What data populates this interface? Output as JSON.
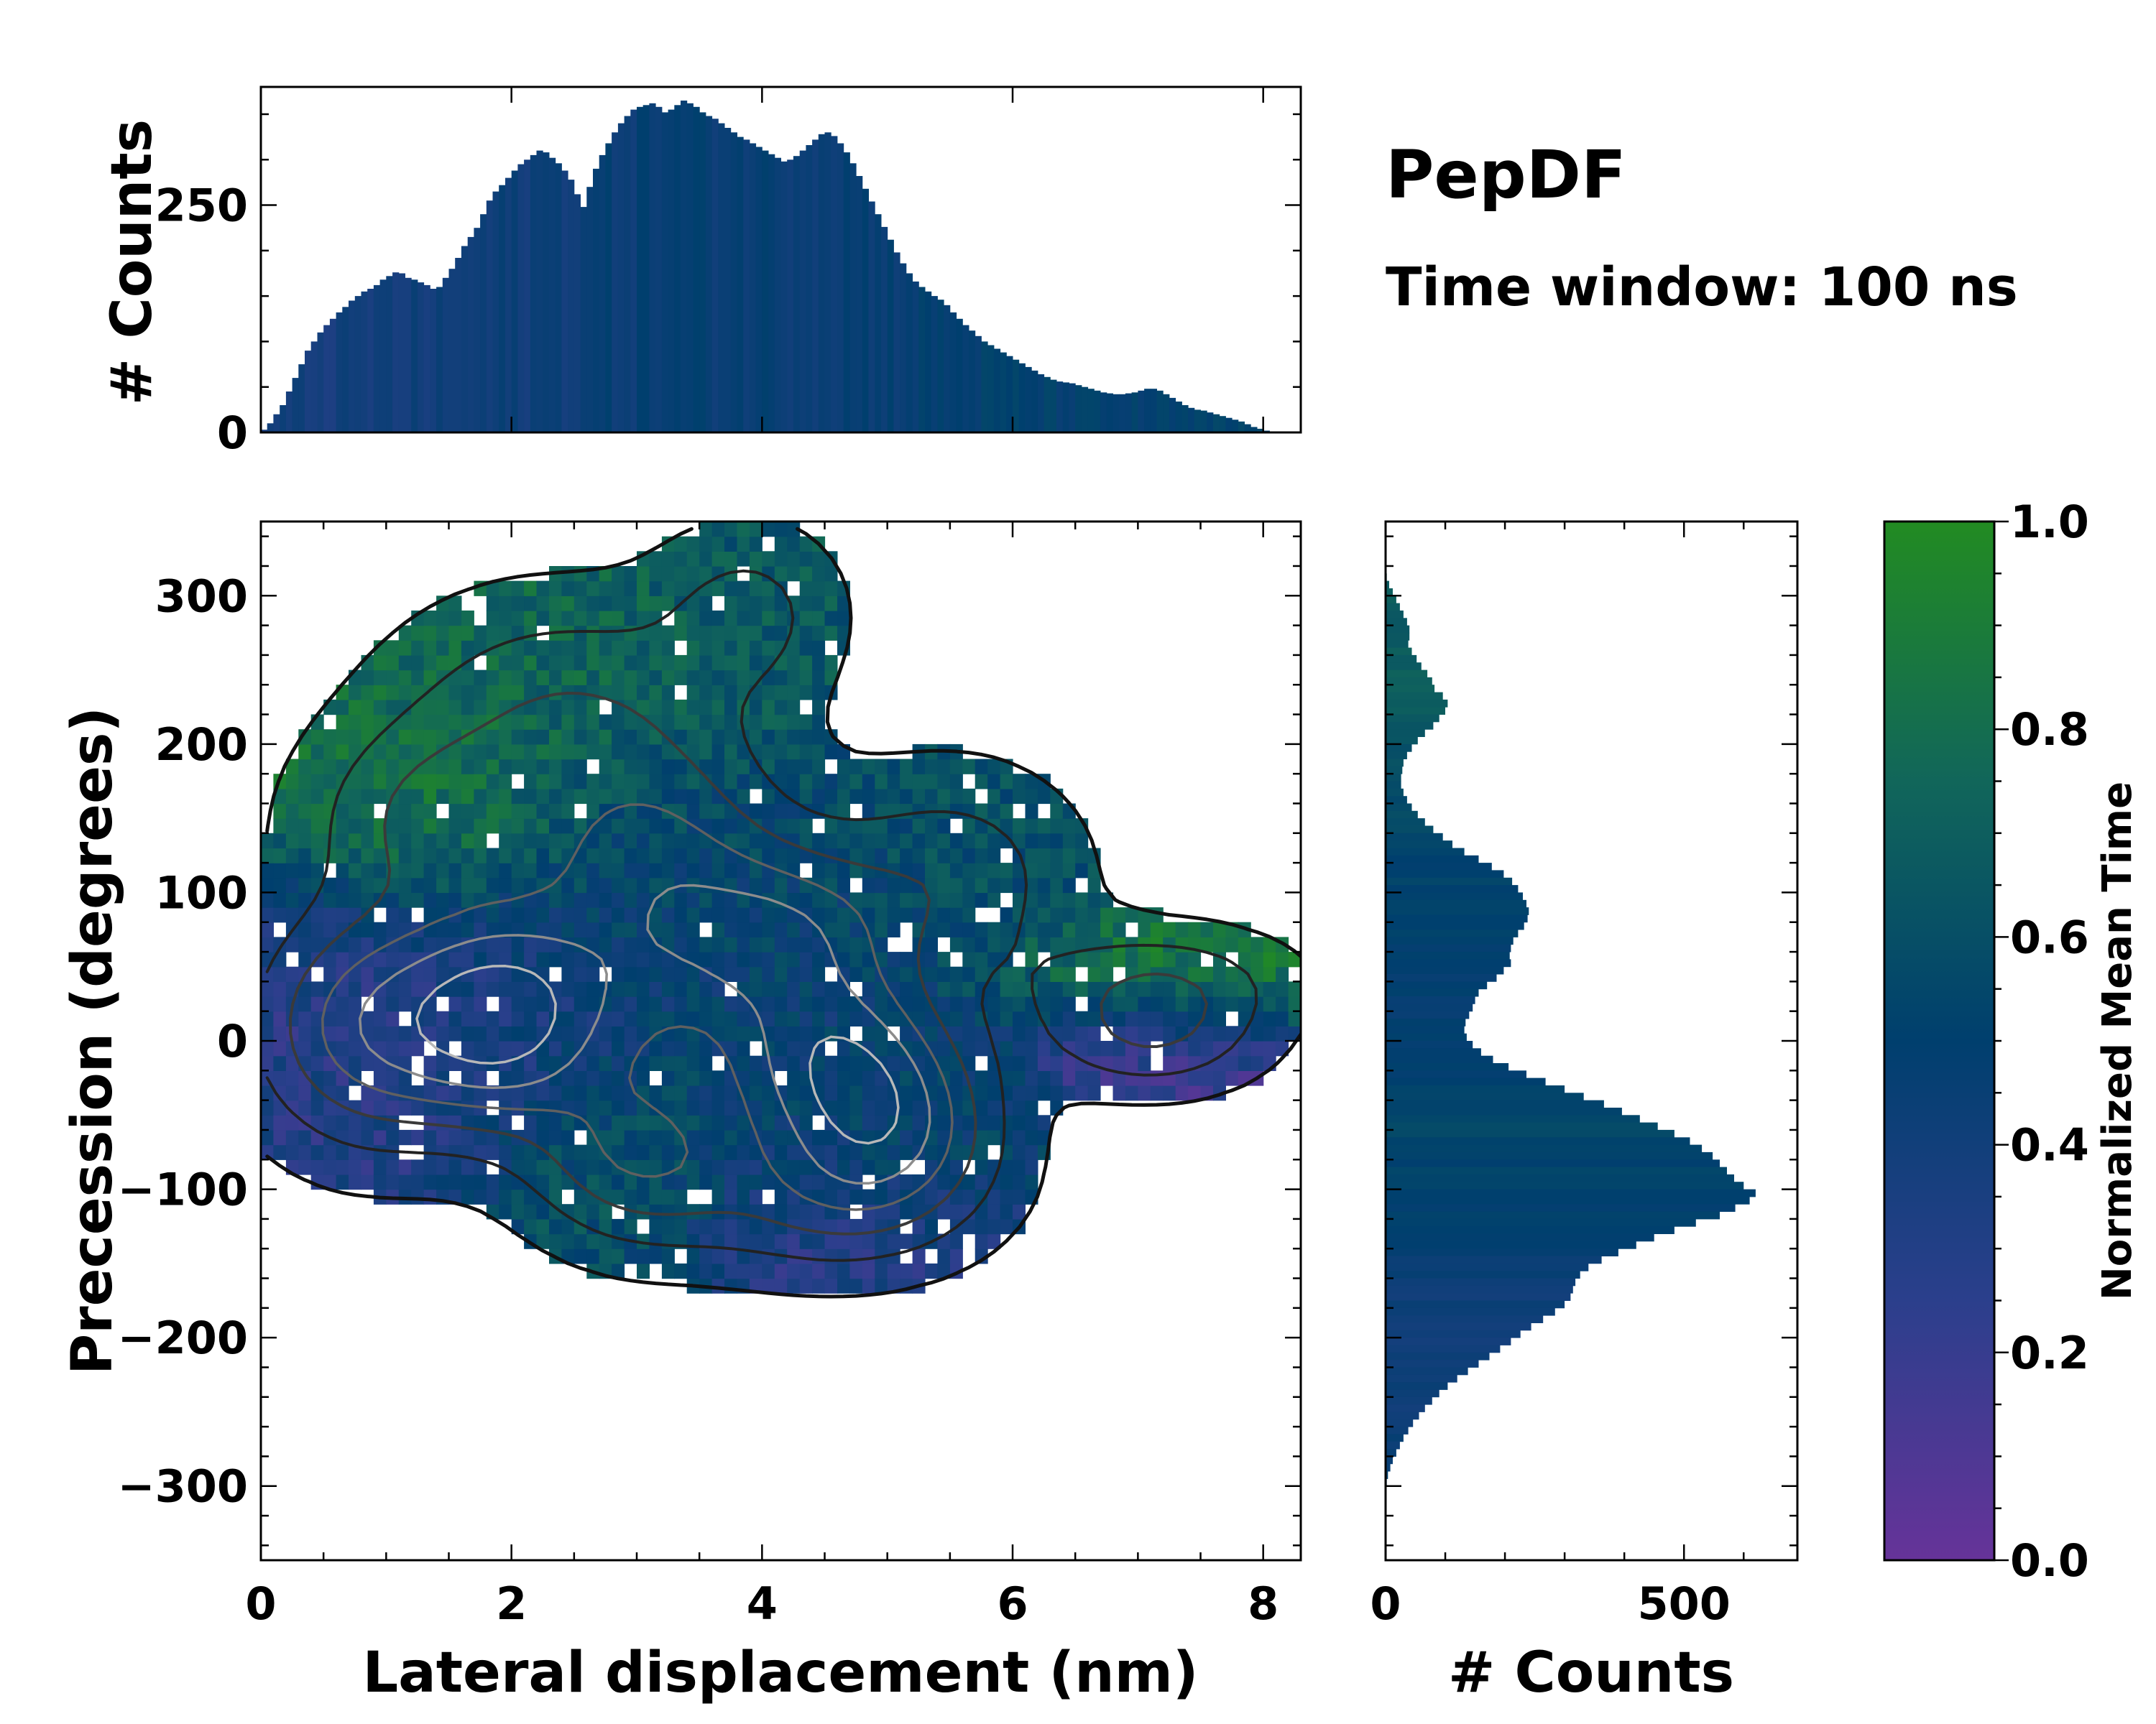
{
  "chart_data": {
    "type": "heatmap",
    "title": "PepDF",
    "subtitle": "Time window: 100 ns",
    "xlabel": "Lateral displacement (nm)",
    "ylabel": "Precession (degrees)",
    "xlim": [
      0,
      8.3
    ],
    "ylim": [
      -350,
      350
    ],
    "x_ticks": [
      0,
      2,
      4,
      6,
      8
    ],
    "y_ticks": [
      -300,
      -200,
      -100,
      0,
      100,
      200,
      300
    ],
    "colorbar": {
      "label": "Normalized Mean Time",
      "range": [
        0.0,
        1.0
      ],
      "ticks": [
        "0.0",
        "0.2",
        "0.4",
        "0.6",
        "0.8",
        "1.0"
      ],
      "colors": [
        "#663399",
        "#2b3f8c",
        "#003f6e",
        "#11665a",
        "#228b22"
      ]
    },
    "density_regions": [
      {
        "x": 0.9,
        "y": 10,
        "sx": 0.65,
        "sy": 55,
        "w": 1.0,
        "t": 0.3
      },
      {
        "x": 1.9,
        "y": 15,
        "sx": 0.5,
        "sy": 45,
        "w": 1.0,
        "t": 0.35
      },
      {
        "x": 3.2,
        "y": 130,
        "sx": 0.7,
        "sy": 55,
        "w": 0.7,
        "t": 0.55
      },
      {
        "x": 1.4,
        "y": 150,
        "sx": 0.7,
        "sy": 45,
        "w": 0.6,
        "t": 0.85
      },
      {
        "x": 2.4,
        "y": 230,
        "sx": 0.9,
        "sy": 50,
        "w": 0.5,
        "t": 0.75
      },
      {
        "x": 4.2,
        "y": 70,
        "sx": 0.6,
        "sy": 40,
        "w": 0.8,
        "t": 0.5
      },
      {
        "x": 4.6,
        "y": -10,
        "sx": 0.6,
        "sy": 40,
        "w": 1.0,
        "t": 0.45
      },
      {
        "x": 5.0,
        "y": -60,
        "sx": 0.6,
        "sy": 40,
        "w": 0.9,
        "t": 0.55
      },
      {
        "x": 3.0,
        "y": -80,
        "sx": 0.6,
        "sy": 40,
        "w": 0.7,
        "t": 0.65
      },
      {
        "x": 4.5,
        "y": -110,
        "sx": 0.8,
        "sy": 35,
        "w": 0.5,
        "t": 0.25
      },
      {
        "x": 3.9,
        "y": 290,
        "sx": 0.5,
        "sy": 40,
        "w": 0.4,
        "t": 0.65
      },
      {
        "x": 7.2,
        "y": 40,
        "sx": 0.7,
        "sy": 25,
        "w": 0.5,
        "t": 0.9
      },
      {
        "x": 7.1,
        "y": 0,
        "sx": 0.6,
        "sy": 25,
        "w": 0.5,
        "t": 0.15
      },
      {
        "x": 5.5,
        "y": 110,
        "sx": 0.7,
        "sy": 50,
        "w": 0.5,
        "t": 0.6
      },
      {
        "x": 2.8,
        "y": 30,
        "sx": 0.8,
        "sy": 60,
        "w": 0.7,
        "t": 0.45
      }
    ],
    "marginal_x": {
      "ylabel": "# Counts",
      "yticks": [
        0,
        250
      ],
      "ylim": [
        0,
        380
      ],
      "bin_start": 0.0,
      "bin_width": 0.05,
      "values": [
        3,
        10,
        20,
        30,
        45,
        60,
        75,
        90,
        100,
        110,
        118,
        125,
        132,
        138,
        145,
        150,
        155,
        158,
        162,
        168,
        172,
        176,
        175,
        170,
        168,
        165,
        162,
        158,
        160,
        170,
        180,
        192,
        205,
        215,
        225,
        240,
        255,
        265,
        272,
        280,
        288,
        295,
        300,
        305,
        310,
        308,
        302,
        296,
        288,
        278,
        262,
        248,
        270,
        290,
        305,
        318,
        330,
        340,
        348,
        355,
        358,
        360,
        362,
        358,
        352,
        355,
        360,
        365,
        362,
        358,
        352,
        348,
        345,
        340,
        335,
        330,
        325,
        322,
        318,
        314,
        310,
        306,
        302,
        298,
        300,
        304,
        310,
        316,
        322,
        328,
        330,
        326,
        318,
        308,
        296,
        282,
        268,
        254,
        240,
        226,
        212,
        198,
        186,
        175,
        166,
        160,
        155,
        150,
        146,
        140,
        132,
        125,
        118,
        112,
        106,
        100,
        96,
        92,
        88,
        84,
        80,
        76,
        72,
        68,
        64,
        61,
        58,
        56,
        55,
        54,
        52,
        50,
        48,
        46,
        44,
        43,
        42,
        42,
        43,
        44,
        46,
        48,
        48,
        46,
        42,
        38,
        34,
        30,
        27,
        25,
        24,
        22,
        20,
        18,
        16,
        14,
        12,
        9,
        6,
        4,
        2,
        1,
        0,
        0,
        0,
        0
      ],
      "colors": [
        0.35,
        0.45,
        0.5,
        0.55,
        0.6,
        0.65
      ]
    },
    "marginal_y": {
      "xlabel": "# Counts",
      "xticks": [
        0,
        500
      ],
      "xlim": [
        0,
        690
      ],
      "bin_start": 350,
      "bin_width": 5,
      "values": [
        0,
        0,
        0,
        0,
        0,
        0,
        0,
        2,
        6,
        12,
        18,
        24,
        30,
        36,
        40,
        40,
        38,
        44,
        52,
        60,
        70,
        78,
        82,
        96,
        104,
        100,
        90,
        80,
        66,
        54,
        44,
        36,
        30,
        28,
        26,
        26,
        30,
        36,
        44,
        54,
        66,
        80,
        96,
        112,
        132,
        156,
        178,
        198,
        212,
        222,
        230,
        236,
        240,
        238,
        232,
        222,
        214,
        210,
        208,
        210,
        198,
        186,
        170,
        156,
        150,
        146,
        140,
        134,
        132,
        136,
        146,
        160,
        180,
        206,
        236,
        268,
        300,
        332,
        366,
        396,
        426,
        456,
        484,
        510,
        530,
        548,
        560,
        572,
        584,
        600,
        620,
        610,
        586,
        560,
        520,
        484,
        450,
        420,
        390,
        362,
        340,
        326,
        318,
        314,
        310,
        300,
        284,
        264,
        244,
        226,
        210,
        192,
        174,
        156,
        138,
        120,
        104,
        90,
        78,
        66,
        56,
        46,
        38,
        30,
        24,
        18,
        12,
        8,
        4,
        2,
        1,
        0,
        0,
        0,
        0,
        0,
        0,
        0,
        0,
        0,
        0,
        0,
        0,
        0,
        0,
        0,
        0,
        0,
        0,
        0
      ]
    }
  }
}
